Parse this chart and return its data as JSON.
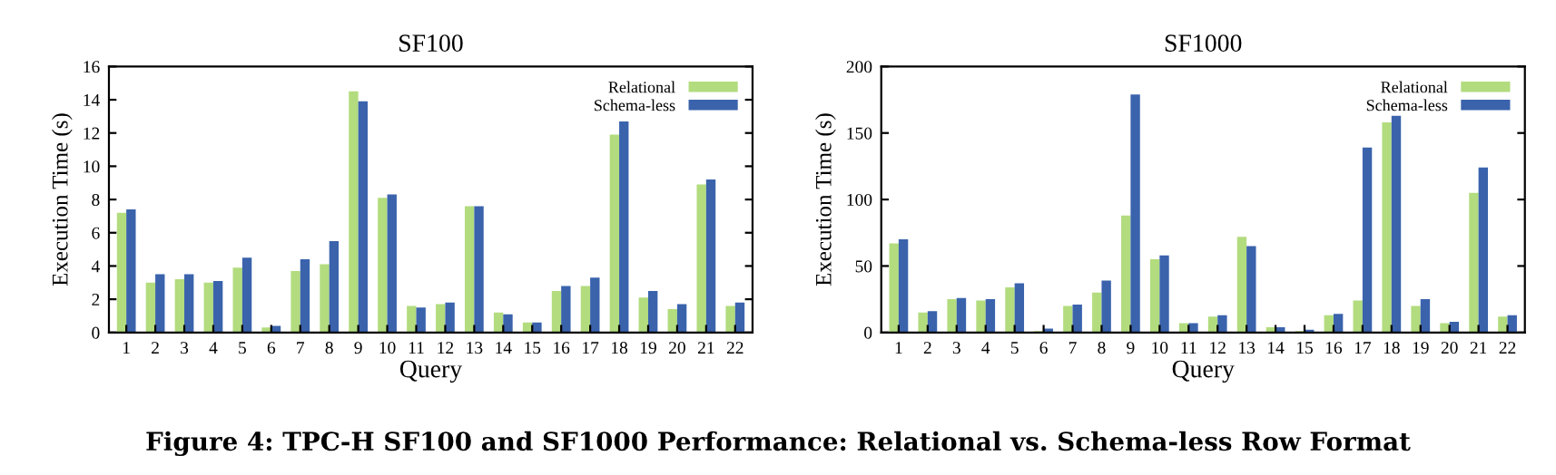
{
  "chart_data": [
    {
      "type": "bar",
      "title": "SF100",
      "xlabel": "Query",
      "ylabel": "Execution Time (s)",
      "categories": [
        "1",
        "2",
        "3",
        "4",
        "5",
        "6",
        "7",
        "8",
        "9",
        "10",
        "11",
        "12",
        "13",
        "14",
        "15",
        "16",
        "17",
        "18",
        "19",
        "20",
        "21",
        "22"
      ],
      "series": [
        {
          "name": "Relational",
          "color": "#b2dc7e",
          "values": [
            7.2,
            3.0,
            3.2,
            3.0,
            3.9,
            0.3,
            3.7,
            4.1,
            14.5,
            8.1,
            1.6,
            1.7,
            7.6,
            1.2,
            0.6,
            2.5,
            2.8,
            11.9,
            2.1,
            1.4,
            8.9,
            1.6
          ]
        },
        {
          "name": "Schema-less",
          "color": "#3a63ac",
          "values": [
            7.4,
            3.5,
            3.5,
            3.1,
            4.5,
            0.4,
            4.4,
            5.5,
            13.9,
            8.3,
            1.5,
            1.8,
            7.6,
            1.1,
            0.6,
            2.8,
            3.3,
            12.7,
            2.5,
            1.7,
            9.2,
            1.8
          ]
        }
      ],
      "ylim": [
        0,
        16
      ],
      "yticks": [
        0,
        2,
        4,
        6,
        8,
        10,
        12,
        14,
        16
      ],
      "grid": false,
      "legend": "top right"
    },
    {
      "type": "bar",
      "title": "SF1000",
      "xlabel": "Query",
      "ylabel": "Execution Time (s)",
      "categories": [
        "1",
        "2",
        "3",
        "4",
        "5",
        "6",
        "7",
        "8",
        "9",
        "10",
        "11",
        "12",
        "13",
        "14",
        "15",
        "16",
        "17",
        "18",
        "19",
        "20",
        "21",
        "22"
      ],
      "series": [
        {
          "name": "Relational",
          "color": "#b2dc7e",
          "values": [
            67,
            15,
            25,
            24,
            34,
            1,
            20,
            30,
            88,
            55,
            7,
            12,
            72,
            4,
            1,
            13,
            24,
            158,
            20,
            7,
            105,
            12
          ]
        },
        {
          "name": "Schema-less",
          "color": "#3a63ac",
          "values": [
            70,
            16,
            26,
            25,
            37,
            3,
            21,
            39,
            179,
            58,
            7,
            13,
            65,
            4,
            2,
            14,
            139,
            163,
            25,
            8,
            124,
            13
          ]
        }
      ],
      "ylim": [
        0,
        200
      ],
      "yticks": [
        0,
        50,
        100,
        150,
        200
      ],
      "grid": false,
      "legend": "top right",
      "annotations": [
        "Figure 4: TPC-H SF100 and SF1000 Performance: Relational vs. Schema-less Row Format"
      ]
    }
  ]
}
